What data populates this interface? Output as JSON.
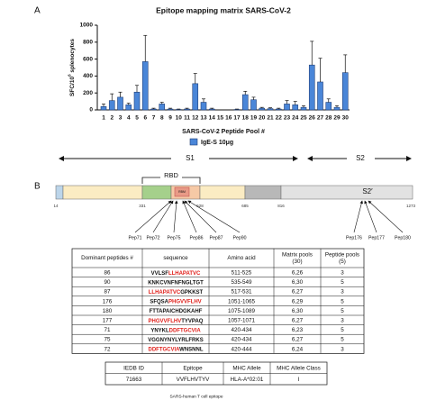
{
  "panel_labels": [
    "A",
    "B"
  ],
  "chart_data": {
    "type": "bar",
    "title": "Epitope mapping matrix SARS-CoV-2",
    "ylabel": {
      "base": "SFC/10",
      "sup": "6",
      "rest": " splenocytes"
    },
    "xlabel": "SARS-CoV-2 Peptide Pool #",
    "categories": [
      "1",
      "2",
      "3",
      "4",
      "5",
      "6",
      "7",
      "8",
      "9",
      "10",
      "11",
      "12",
      "13",
      "14",
      "15",
      "16",
      "17",
      "18",
      "19",
      "20",
      "21",
      "22",
      "23",
      "24",
      "25",
      "26",
      "27",
      "28",
      "29",
      "30"
    ],
    "series": [
      {
        "name": "IgE-S 10μg",
        "color": "#4a86d8",
        "values": [
          40,
          110,
          150,
          60,
          210,
          570,
          10,
          70,
          10,
          5,
          10,
          310,
          90,
          10,
          0,
          0,
          5,
          180,
          120,
          20,
          15,
          10,
          70,
          60,
          30,
          530,
          330,
          90,
          30,
          440
        ],
        "errors": [
          30,
          80,
          60,
          20,
          80,
          310,
          10,
          20,
          10,
          5,
          10,
          120,
          40,
          10,
          0,
          0,
          5,
          40,
          30,
          10,
          10,
          10,
          40,
          40,
          20,
          280,
          280,
          40,
          20,
          210
        ]
      }
    ],
    "ylim": [
      0,
      1000
    ],
    "yticks": [
      0,
      200,
      400,
      600,
      800,
      1000
    ]
  },
  "diagram": {
    "s1": "S1",
    "s2": "S2",
    "rbd": "RBD",
    "rbm": "RBM",
    "s2prime": "S2′",
    "residues": [
      "14",
      "331",
      "528",
      "685",
      "816",
      "1273"
    ],
    "peptides": [
      "Pep71",
      "Pep72",
      "Pep75",
      "Pep86",
      "Pep87",
      "Pep90",
      "Pep176",
      "Pep177",
      "Pep180"
    ]
  },
  "table": {
    "header": [
      [
        "Dominant peptides #"
      ],
      [
        "sequence"
      ],
      [
        "Amino acid"
      ],
      [
        "Matrix pools",
        "(30)"
      ],
      [
        "Peptide pools",
        "(5)"
      ]
    ],
    "rows": [
      {
        "id": "86",
        "sequence": [
          {
            "text": "VVLSF",
            "color": "#111111"
          },
          {
            "text": "LLHAPATVC",
            "color": "#e0201b"
          }
        ],
        "amino_acid": "511-525",
        "matrix": "6,26",
        "pools": "3"
      },
      {
        "id": "90",
        "sequence": [
          {
            "text": "KNKCVNFNFNGLTGT",
            "color": "#111111"
          }
        ],
        "amino_acid": "535-549",
        "matrix": "6,30",
        "pools": "5"
      },
      {
        "id": "87",
        "sequence": [
          {
            "text": "LLHAPATVC",
            "color": "#e0201b"
          },
          {
            "text": "GPKKST",
            "color": "#111111"
          }
        ],
        "amino_acid": "517-531",
        "matrix": "6,27",
        "pools": "3"
      },
      {
        "id": "176",
        "sequence": [
          {
            "text": "SFQSA",
            "color": "#111111"
          },
          {
            "text": "PHGVVFLHV",
            "color": "#e0201b"
          }
        ],
        "amino_acid": "1051-1065",
        "matrix": "6,29",
        "pools": "5"
      },
      {
        "id": "180",
        "sequence": [
          {
            "text": "FTTAPAICHDGKAHF",
            "color": "#111111"
          }
        ],
        "amino_acid": "1075-1089",
        "matrix": "6,30",
        "pools": "5"
      },
      {
        "id": "177",
        "sequence": [
          {
            "text": "PHGVVFLHV",
            "color": "#e0201b"
          },
          {
            "text": "TYVPAQ",
            "color": "#111111"
          }
        ],
        "amino_acid": "1057-1071",
        "matrix": "6,27",
        "pools": "3"
      },
      {
        "id": "71",
        "sequence": [
          {
            "text": "YNYKL",
            "color": "#111111"
          },
          {
            "text": "DDFTGCVIA",
            "color": "#e0201b"
          }
        ],
        "amino_acid": "420-434",
        "matrix": "6,23",
        "pools": "5"
      },
      {
        "id": "75",
        "sequence": [
          {
            "text": "VGGNYNYLYRLFRKS",
            "color": "#111111"
          }
        ],
        "amino_acid": "420-434",
        "matrix": "6,27",
        "pools": "5"
      },
      {
        "id": "72",
        "sequence": [
          {
            "text": "DDFTGCVIA",
            "color": "#e0201b"
          },
          {
            "text": "WNSNNL",
            "color": "#111111"
          }
        ],
        "amino_acid": "420-444",
        "matrix": "6,24",
        "pools": "3"
      }
    ]
  },
  "epitope_table": {
    "header": [
      "IEDB ID",
      "Epitope",
      "MHC Allele",
      "MHC Allele Class"
    ],
    "row": [
      "71663",
      "VVFLHVTYV",
      "HLA-A*02:01",
      "I"
    ],
    "caption": "SARS-human T cell epitope"
  }
}
